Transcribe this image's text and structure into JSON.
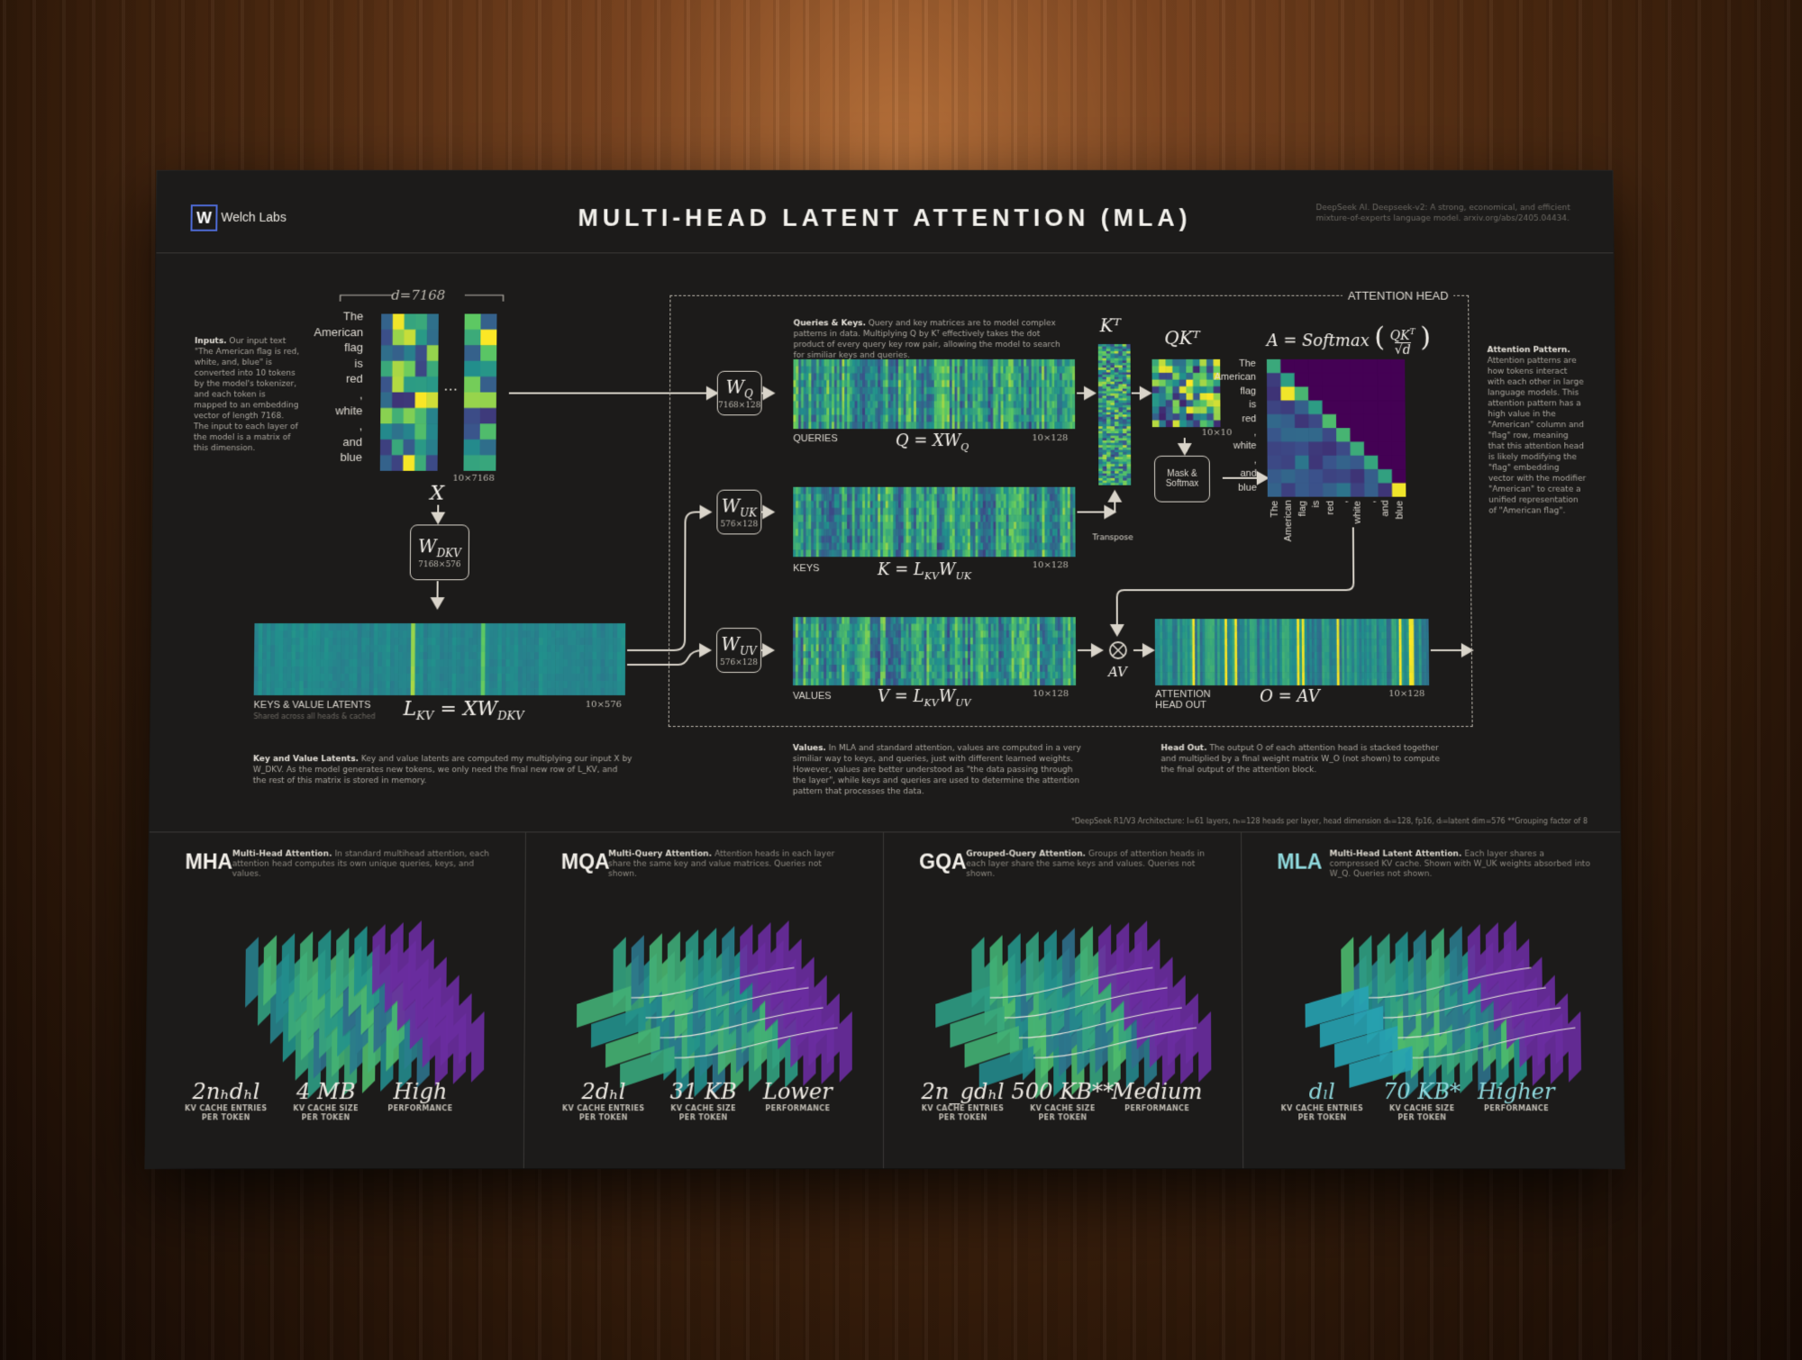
{
  "header": {
    "logo_letter": "W",
    "logo_text": "Welch Labs",
    "title": "MULTI-HEAD LATENT ATTENTION (MLA)",
    "citation": "DeepSeek AI. Deepseek-v2: A strong, economical, and efficient mixture-of-experts language model. arxiv.org/abs/2405.04434."
  },
  "inputs": {
    "note_title": "Inputs.",
    "note": "Our input text \"The American flag is red, white, and, blue\" is converted into 10 tokens by the model's tokenizer, and each token is mapped to an embedding vector of length 7168. The input to each layer of the model is a matrix of this dimension.",
    "dim_label": "d=7168",
    "tokens": [
      "The",
      "American",
      "flag",
      "is",
      "red",
      ",",
      "white",
      ",",
      "and",
      "blue"
    ],
    "ellipsis": "…",
    "shape": "10×7168",
    "symbol": "X"
  },
  "wdkv": {
    "symbol": "W_DKV",
    "shape": "7168×576"
  },
  "latents": {
    "label": "KEYS & VALUE LATENTS",
    "sublabel": "Shared across all heads & cached",
    "equation": "L_KV = XW_DKV",
    "shape": "10×576",
    "note_title": "Key and Value Latents.",
    "note": "Key and value latents are computed my multiplying our input X by W_DKV. As the model generates new tokens, we only need the final new row of L_KV, and the rest of this matrix is stored in memory."
  },
  "attention_head": {
    "label": "ATTENTION HEAD",
    "qk_note_title": "Queries & Keys.",
    "qk_note": "Query and key matrices are to model complex patterns in data. Multiplying Q by Kᵀ effectively takes the dot product of every query key row pair, allowing the model to search for similiar keys and queries.",
    "wq": {
      "symbol": "W_Q",
      "shape": "7168×128"
    },
    "wuk": {
      "symbol": "W_UK",
      "shape": "576×128"
    },
    "wuv": {
      "symbol": "W_UV",
      "shape": "576×128"
    },
    "queries": {
      "label": "QUERIES",
      "equation": "Q = XW_Q",
      "shape": "10×128"
    },
    "keys": {
      "label": "KEYS",
      "equation": "K = L_KV W_UK",
      "shape": "10×128"
    },
    "values": {
      "label": "VALUES",
      "equation": "V = L_KV W_UV",
      "shape": "10×128"
    },
    "kt": "Kᵀ",
    "transpose": "Transpose",
    "qkt": "QKᵀ",
    "qkt_shape": "10×10",
    "mask_softmax": [
      "Mask &",
      "Softmax"
    ],
    "softmax_eq": "A = Softmax",
    "av_label": "AV",
    "head_out": {
      "label": [
        "ATTENTION",
        "HEAD OUT"
      ],
      "equation": "O = AV",
      "shape": "10×128"
    },
    "pattern_tokens": [
      "The",
      "American",
      "flag",
      "is",
      "red",
      ",",
      "white",
      ",",
      "and",
      "blue"
    ],
    "values_note_title": "Values.",
    "values_note": "In MLA and standard attention, values are computed in a very similiar way to keys, and queries, just with different learned weights. However, values are better understood as \"the data passing through the layer\", while keys and queries are used to determine the attention pattern that processes the data.",
    "headout_note_title": "Head Out.",
    "headout_note": "The output O of each attention head is stacked together and multiplied by a final weight matrix W_O (not shown) to compute the final output of the attention block."
  },
  "pattern_note": {
    "title": "Attention Pattern.",
    "text": "Attention patterns are how tokens interact with each other in large language models. This attention pattern has a high value in the \"American\" column and \"flag\" row, meaning that this attention head is likely modifying the \"flag\" embedding vector with the modifier \"American\" to create a unified representation of \"American flag\"."
  },
  "footnote": "*DeepSeek R1/V3 Architecture: l=61 layers, nₕ=128 heads per layer, head dimension dₕ=128, fp16, dₗ=latent dim=576   **Grouping factor of 8",
  "panels": [
    {
      "name": "MHA",
      "subtitle_bold": "Multi-Head Attention.",
      "subtitle": "In standard multihead attention, each attention head computes its own unique queries, keys, and values.",
      "stats": [
        {
          "value": "2nₕdₕl",
          "label": [
            "KV CACHE ENTRIES",
            "PER TOKEN"
          ]
        },
        {
          "value": "4 MB",
          "label": [
            "KV CACHE SIZE",
            "PER TOKEN"
          ]
        },
        {
          "value": "High",
          "label": [
            "PERFORMANCE"
          ]
        }
      ]
    },
    {
      "name": "MQA",
      "subtitle_bold": "Multi-Query Attention.",
      "subtitle": "Attention heads in each layer share the same key and value matrices. Queries not shown.",
      "stats": [
        {
          "value": "2dₕl",
          "label": [
            "KV CACHE ENTRIES",
            "PER TOKEN"
          ]
        },
        {
          "value": "31 KB",
          "label": [
            "KV CACHE SIZE",
            "PER TOKEN"
          ]
        },
        {
          "value": "Lower",
          "label": [
            "PERFORMANCE"
          ]
        }
      ]
    },
    {
      "name": "GQA",
      "subtitle_bold": "Grouped-Query Attention.",
      "subtitle": "Groups of attention heads in each layer share the same keys and values. Queries not shown.",
      "stats": [
        {
          "value": "2n_gdₕl",
          "label": [
            "KV CACHE ENTRIES",
            "PER TOKEN"
          ]
        },
        {
          "value": "500 KB**",
          "label": [
            "KV CACHE SIZE",
            "PER TOKEN"
          ]
        },
        {
          "value": "Medium",
          "label": [
            "PERFORMANCE"
          ]
        }
      ]
    },
    {
      "name": "MLA",
      "subtitle_bold": "Multi-Head Latent Attention.",
      "subtitle": "Each layer shares a compressed KV cache. Shown with W_UK weights absorbed into W_Q. Queries not shown.",
      "stats": [
        {
          "value": "dₗl",
          "label": [
            "KV CACHE ENTRIES",
            "PER TOKEN"
          ]
        },
        {
          "value": "70 KB*",
          "label": [
            "KV CACHE SIZE",
            "PER TOKEN"
          ]
        },
        {
          "value": "Higher",
          "label": [
            "PERFORMANCE"
          ]
        }
      ]
    }
  ],
  "colors": {
    "poster_bg": "#1c1b1a",
    "line": "#d9d4ca",
    "mla_accent": "#8fd8dc",
    "viridis": [
      "#440154",
      "#3b528b",
      "#21918c",
      "#5ec962",
      "#fde725"
    ]
  }
}
